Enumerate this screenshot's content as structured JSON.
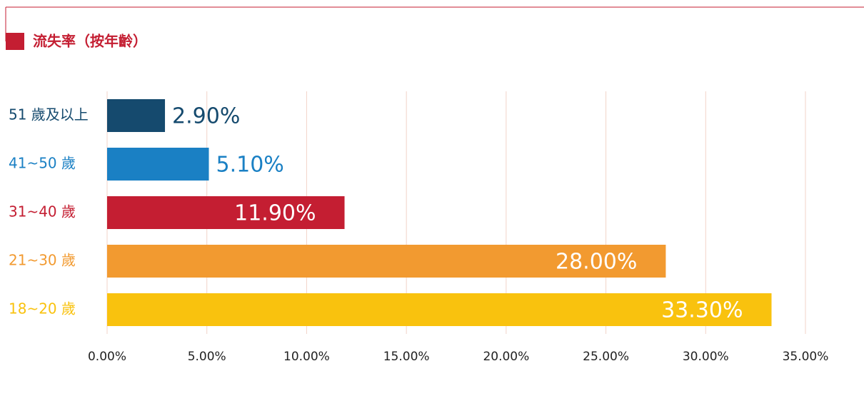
{
  "chart_data": {
    "type": "hbar",
    "title": "流失率（按年齡）",
    "categories": [
      "51 歲及以上",
      "41~50 歲",
      "31~40 歲",
      "21~30 歲",
      "18~20 歲"
    ],
    "values": [
      2.9,
      5.1,
      11.9,
      28.0,
      33.3
    ],
    "value_labels": [
      "2.90%",
      "5.10%",
      "11.90%",
      "28.00%",
      "33.30%"
    ],
    "colors": [
      "#154a6e",
      "#1a80c4",
      "#c41e32",
      "#f29a30",
      "#f9c20e"
    ],
    "xlim": [
      0,
      35
    ],
    "xticks": [
      {
        "value": 0,
        "label": "0.00%"
      },
      {
        "value": 5,
        "label": "5.00%"
      },
      {
        "value": 10,
        "label": "10.00%"
      },
      {
        "value": 15,
        "label": "15.00%"
      },
      {
        "value": 20,
        "label": "20.00%"
      },
      {
        "value": 25,
        "label": "25.00%"
      },
      {
        "value": 30,
        "label": "30.00%"
      },
      {
        "value": 35,
        "label": "35.00%"
      }
    ],
    "grid": true
  }
}
